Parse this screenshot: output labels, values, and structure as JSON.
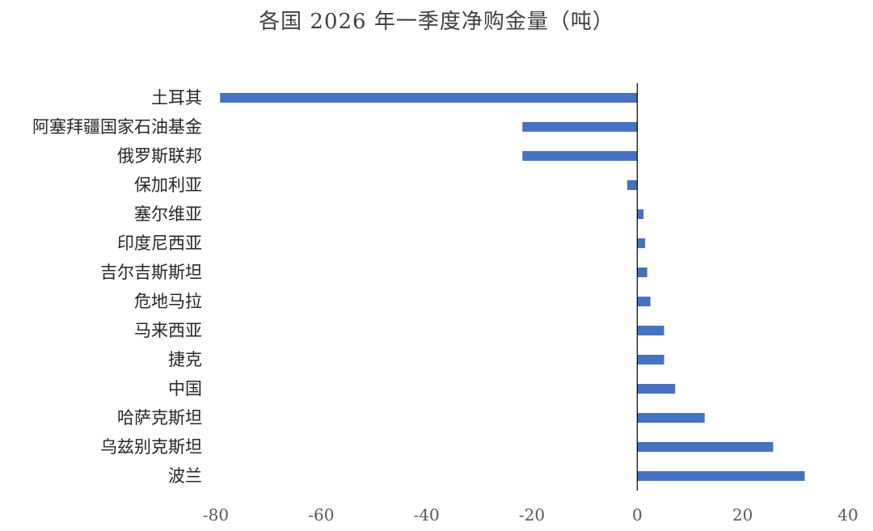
{
  "chart_data": {
    "type": "bar",
    "orientation": "horizontal",
    "title": "各国 2026 年一季度净购金量（吨）",
    "xlabel": "",
    "ylabel": "",
    "xlim": [
      -80,
      40
    ],
    "xticks": [
      -80,
      -60,
      -40,
      -20,
      0,
      20,
      40
    ],
    "xtick_labels": [
      "-80",
      "-60",
      "-40",
      "-20",
      "0",
      "20",
      "40"
    ],
    "grid": false,
    "legend": "none",
    "bar_color": "#4472C4",
    "categories": [
      "土耳其",
      "阿塞拜疆国家石油基金",
      "俄罗斯联邦",
      "保加利亚",
      "塞尔维亚",
      "印度尼西亚",
      "吉尔吉斯斯坦",
      "危地马拉",
      "马来西亚",
      "捷克",
      "中国",
      "哈萨克斯坦",
      "乌兹别克斯坦",
      "波兰"
    ],
    "values": [
      -79.2,
      -21.8,
      -21.8,
      -1.9,
      1.2,
      1.5,
      1.9,
      2.5,
      5.1,
      5.1,
      7.2,
      12.8,
      25.8,
      31.8
    ]
  }
}
